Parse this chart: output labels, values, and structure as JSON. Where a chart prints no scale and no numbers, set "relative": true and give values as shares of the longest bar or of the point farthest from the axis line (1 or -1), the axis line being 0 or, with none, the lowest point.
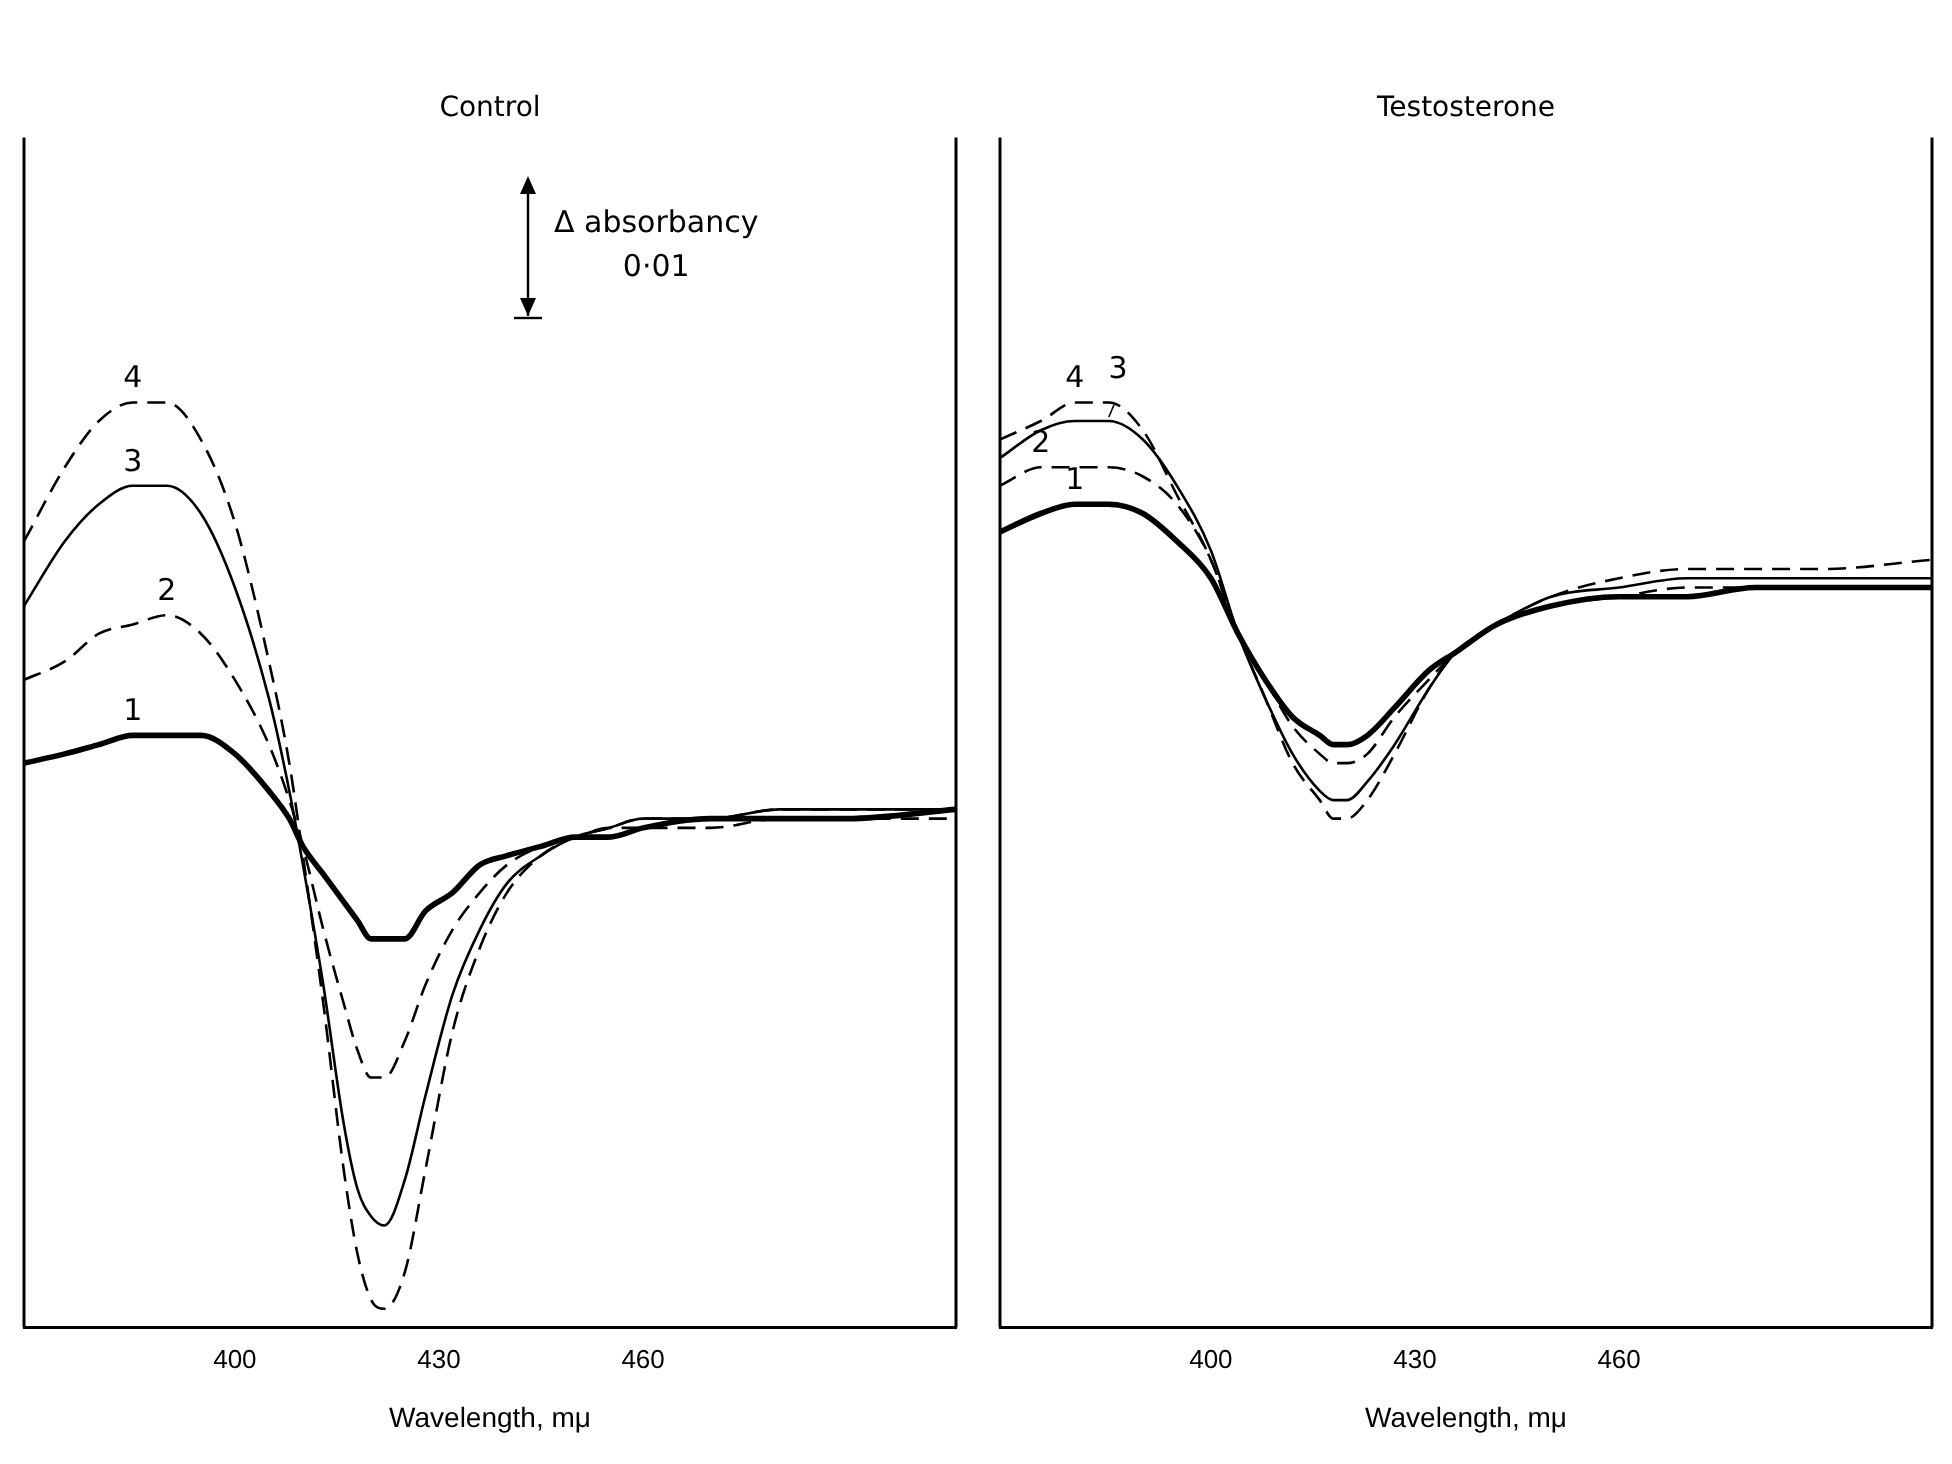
{
  "chart_data": [
    {
      "type": "line",
      "title": "Control",
      "xlabel": "Wavelength, mμ",
      "relative": true,
      "xlim": [
        369,
        506
      ],
      "xticks": [
        400,
        430,
        460
      ],
      "grid": false,
      "legend": false,
      "marker": "none",
      "annotations": [
        "Δ absorbancy 0·01"
      ],
      "x": [
        369,
        375,
        380,
        385,
        390,
        395,
        400,
        405,
        408,
        410,
        413,
        416,
        418,
        420,
        422,
        425,
        428,
        432,
        436,
        440,
        445,
        450,
        455,
        460,
        470,
        480,
        490,
        506
      ],
      "series": [
        {
          "name": "1",
          "color": "#000000",
          "line_style": "solid",
          "values": [
            0.61,
            0.62,
            0.63,
            0.64,
            0.64,
            0.64,
            0.62,
            0.58,
            0.55,
            0.52,
            0.49,
            0.46,
            0.44,
            0.42,
            0.42,
            0.42,
            0.45,
            0.47,
            0.5,
            0.51,
            0.52,
            0.53,
            0.53,
            0.54,
            0.55,
            0.55,
            0.55,
            0.56
          ]
        },
        {
          "name": "2",
          "color": "#000000",
          "line_style": "dashed",
          "values": [
            0.7,
            0.72,
            0.75,
            0.76,
            0.77,
            0.75,
            0.7,
            0.63,
            0.57,
            0.52,
            0.43,
            0.35,
            0.3,
            0.27,
            0.27,
            0.31,
            0.37,
            0.43,
            0.47,
            0.5,
            0.52,
            0.53,
            0.54,
            0.54,
            0.54,
            0.55,
            0.55,
            0.55
          ]
        },
        {
          "name": "3",
          "color": "#000000",
          "line_style": "solid",
          "values": [
            0.78,
            0.85,
            0.89,
            0.91,
            0.91,
            0.88,
            0.8,
            0.68,
            0.58,
            0.5,
            0.37,
            0.22,
            0.15,
            0.12,
            0.11,
            0.16,
            0.25,
            0.36,
            0.43,
            0.48,
            0.51,
            0.53,
            0.54,
            0.55,
            0.55,
            0.56,
            0.56,
            0.56
          ]
        },
        {
          "name": "4",
          "color": "#000000",
          "line_style": "dashed",
          "values": [
            0.85,
            0.93,
            0.98,
            1.0,
            1.0,
            0.96,
            0.87,
            0.72,
            0.61,
            0.51,
            0.35,
            0.17,
            0.08,
            0.03,
            0.02,
            0.06,
            0.17,
            0.32,
            0.41,
            0.47,
            0.51,
            0.53,
            0.54,
            0.55,
            0.55,
            0.56,
            0.56,
            0.56
          ]
        }
      ]
    },
    {
      "type": "line",
      "title": "Testosterone",
      "xlabel": "Wavelength, mμ",
      "relative": true,
      "xlim": [
        369,
        506
      ],
      "xticks": [
        400,
        430,
        460
      ],
      "grid": false,
      "legend": false,
      "marker": "none",
      "x": [
        369,
        375,
        380,
        385,
        390,
        395,
        400,
        404,
        408,
        412,
        416,
        418,
        420,
        423,
        427,
        432,
        436,
        442,
        450,
        460,
        470,
        480,
        490,
        506
      ],
      "series": [
        {
          "name": "1",
          "color": "#000000",
          "line_style": "solid",
          "values": [
            0.86,
            0.88,
            0.89,
            0.89,
            0.88,
            0.85,
            0.81,
            0.75,
            0.7,
            0.66,
            0.64,
            0.63,
            0.63,
            0.64,
            0.67,
            0.71,
            0.73,
            0.76,
            0.78,
            0.79,
            0.79,
            0.8,
            0.8,
            0.8
          ]
        },
        {
          "name": "2",
          "color": "#000000",
          "line_style": "dashed",
          "values": [
            0.91,
            0.93,
            0.93,
            0.93,
            0.92,
            0.89,
            0.83,
            0.75,
            0.7,
            0.65,
            0.62,
            0.61,
            0.61,
            0.62,
            0.66,
            0.7,
            0.73,
            0.76,
            0.78,
            0.79,
            0.8,
            0.8,
            0.8,
            0.8
          ]
        },
        {
          "name": "3",
          "color": "#000000",
          "line_style": "solid",
          "values": [
            0.94,
            0.97,
            0.98,
            0.98,
            0.96,
            0.91,
            0.84,
            0.75,
            0.68,
            0.62,
            0.58,
            0.57,
            0.57,
            0.59,
            0.63,
            0.69,
            0.73,
            0.76,
            0.79,
            0.8,
            0.81,
            0.81,
            0.81,
            0.81
          ]
        },
        {
          "name": "4",
          "color": "#000000",
          "line_style": "dashed",
          "values": [
            0.96,
            0.98,
            1.0,
            1.0,
            0.97,
            0.9,
            0.83,
            0.75,
            0.68,
            0.61,
            0.57,
            0.55,
            0.55,
            0.57,
            0.62,
            0.69,
            0.73,
            0.76,
            0.79,
            0.81,
            0.82,
            0.82,
            0.82,
            0.83
          ]
        }
      ]
    }
  ]
}
